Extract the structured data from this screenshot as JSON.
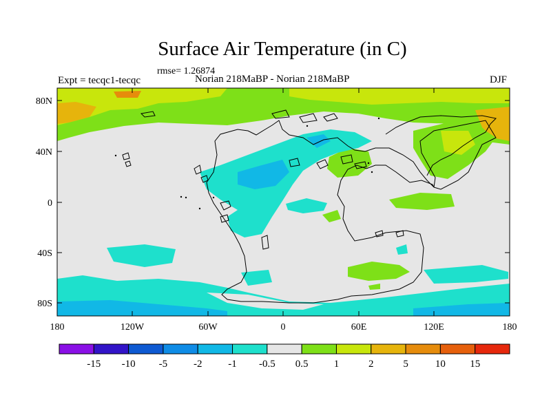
{
  "title": "Surface Air Temperature (in C)",
  "rmse_label": "rmse= 1.26874",
  "expt_label": "Expt = tecqc1-tecqc",
  "center_label": "Norian 218MaBP - Norian 218MaBP",
  "season": "DJF",
  "lat_ticks": [
    "80N",
    "40N",
    "0",
    "40S",
    "80S"
  ],
  "lon_ticks": [
    "180",
    "120W",
    "60W",
    "0",
    "60E",
    "120E",
    "180"
  ],
  "colorbar": {
    "labels": [
      "-15",
      "-10",
      "-5",
      "-2",
      "-1",
      "-0.5",
      "0.5",
      "1",
      "2",
      "5",
      "10",
      "15"
    ],
    "colors": [
      "#8a10e6",
      "#3214c8",
      "#0e5ad2",
      "#0f8ce6",
      "#11b8e6",
      "#1ee0cc",
      "#e6e6e6",
      "#7ee018",
      "#c8e60c",
      "#e6b40c",
      "#e68c0c",
      "#e6600c",
      "#e6280c"
    ]
  },
  "colors": {
    "neutral": "#e6e6e6",
    "pos_small": "#7ee018",
    "pos_mid": "#c8e60c",
    "pos_large": "#e6b40c",
    "pos_larger": "#e68c0c",
    "neg_small": "#1ee0cc",
    "neg_mid": "#11b8e6",
    "coastline": "#000000"
  }
}
